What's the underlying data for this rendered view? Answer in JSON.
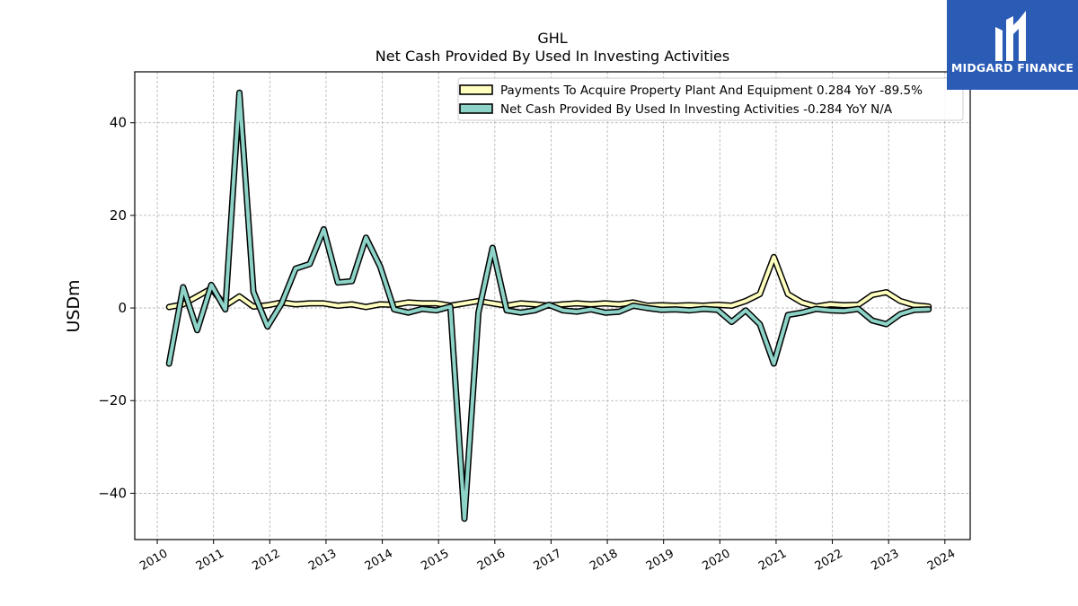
{
  "chart_data": {
    "type": "line",
    "title": "GHL",
    "subtitle": "Net Cash Provided By Used In Investing Activities",
    "ylabel": "USDm",
    "xlabel": "",
    "xlim": [
      2009.6,
      2024.45
    ],
    "ylim": [
      -50,
      51
    ],
    "x_ticks": [
      2010,
      2011,
      2012,
      2013,
      2014,
      2015,
      2016,
      2017,
      2018,
      2019,
      2020,
      2021,
      2022,
      2023,
      2024
    ],
    "y_ticks": [
      -40,
      -20,
      0,
      20,
      40
    ],
    "grid": true,
    "legend_position": "top-right",
    "series": [
      {
        "name": "Payments To Acquire Property Plant And Equipment  0.284 YoY -89.5%",
        "color": "#ffffbf",
        "x": [
          2010.21,
          2010.46,
          2010.71,
          2010.96,
          2011.21,
          2011.46,
          2011.71,
          2011.96,
          2012.21,
          2012.46,
          2012.71,
          2012.96,
          2013.21,
          2013.46,
          2013.71,
          2013.96,
          2014.21,
          2014.46,
          2014.71,
          2014.96,
          2015.21,
          2015.46,
          2015.71,
          2015.96,
          2016.21,
          2016.46,
          2016.71,
          2016.96,
          2017.21,
          2017.46,
          2017.71,
          2017.96,
          2018.21,
          2018.46,
          2018.71,
          2018.96,
          2019.21,
          2019.46,
          2019.71,
          2019.96,
          2020.21,
          2020.46,
          2020.71,
          2020.96,
          2021.21,
          2021.46,
          2021.71,
          2021.96,
          2022.21,
          2022.46,
          2022.71,
          2022.96,
          2023.21,
          2023.46,
          2023.71
        ],
        "values": [
          0.2,
          0.8,
          2.5,
          4.2,
          0.5,
          2.5,
          0.3,
          0.6,
          1.2,
          0.8,
          1.0,
          1.0,
          0.5,
          0.8,
          0.2,
          0.8,
          0.7,
          1.2,
          1.0,
          1.0,
          0.5,
          1.0,
          1.5,
          1.0,
          0.5,
          1.0,
          0.8,
          0.5,
          0.8,
          1.0,
          0.8,
          1.0,
          0.8,
          1.2,
          0.5,
          0.6,
          0.5,
          0.6,
          0.5,
          0.7,
          0.5,
          1.5,
          3.0,
          11.0,
          3.0,
          1.2,
          0.3,
          0.8,
          0.6,
          0.7,
          2.8,
          3.4,
          1.5,
          0.6,
          0.3
        ]
      },
      {
        "name": "Net Cash Provided By Used In Investing Activities  -0.284 YoY N/A",
        "color": "#8dd3c7",
        "x": [
          2010.21,
          2010.46,
          2010.71,
          2010.96,
          2011.21,
          2011.46,
          2011.71,
          2011.96,
          2012.21,
          2012.46,
          2012.71,
          2012.96,
          2013.21,
          2013.46,
          2013.71,
          2013.96,
          2014.21,
          2014.46,
          2014.71,
          2014.96,
          2015.21,
          2015.46,
          2015.71,
          2015.96,
          2016.21,
          2016.46,
          2016.71,
          2016.96,
          2017.21,
          2017.46,
          2017.71,
          2017.96,
          2018.21,
          2018.46,
          2018.71,
          2018.96,
          2019.21,
          2019.46,
          2019.71,
          2019.96,
          2020.21,
          2020.46,
          2020.71,
          2020.96,
          2021.21,
          2021.46,
          2021.71,
          2021.96,
          2022.21,
          2022.46,
          2022.71,
          2022.96,
          2023.21,
          2023.46,
          2023.71
        ],
        "values": [
          -12.0,
          4.5,
          -4.8,
          5.0,
          -0.3,
          46.5,
          3.5,
          -4.0,
          1.0,
          8.5,
          9.5,
          17.0,
          5.5,
          5.8,
          15.2,
          9.0,
          -0.3,
          -1.0,
          -0.2,
          -0.5,
          0.3,
          -45.5,
          -1.0,
          13.0,
          -0.5,
          -1.0,
          -0.5,
          0.7,
          -0.5,
          -0.8,
          -0.3,
          -1.0,
          -0.8,
          0.5,
          0.0,
          -0.4,
          -0.3,
          -0.5,
          -0.2,
          -0.4,
          -3.0,
          -0.5,
          -3.5,
          -12.0,
          -1.5,
          -1.0,
          -0.2,
          -0.5,
          -0.6,
          -0.2,
          -2.7,
          -3.5,
          -1.3,
          -0.4,
          -0.3
        ]
      }
    ]
  },
  "logo": {
    "text": "MIDGARD FINANCE",
    "icon": "midgard-logo-icon",
    "color": "#2a5bb5"
  }
}
